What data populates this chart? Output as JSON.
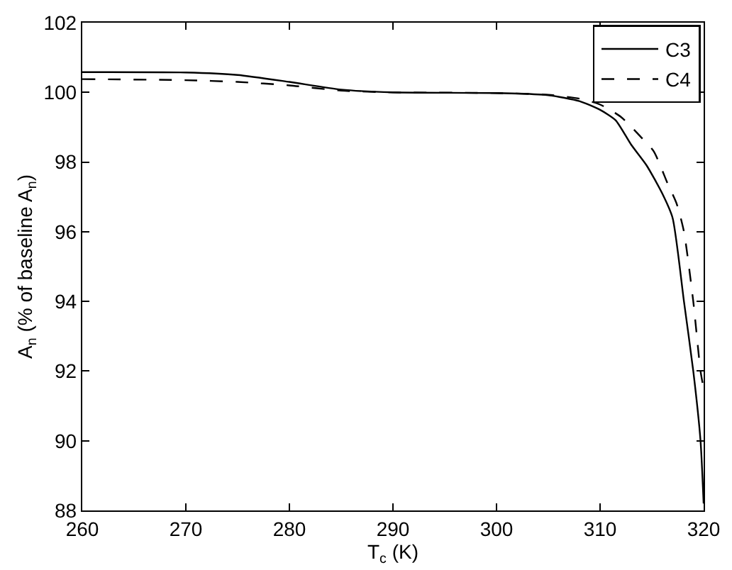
{
  "chart_data": {
    "type": "line",
    "xlabel": "T$_{c}$ (K)",
    "ylabel": "A$_{n}$ (% of baseline A$_{n}$)",
    "xlim": [
      260,
      320
    ],
    "xticks": [
      260,
      270,
      280,
      290,
      300,
      310,
      320
    ],
    "ylim": [
      88,
      102
    ],
    "yticks": [
      88,
      90,
      92,
      94,
      96,
      98,
      100,
      102
    ],
    "legend": "top right",
    "marker": "none",
    "series": [
      {
        "name": "C3",
        "color": "#000000",
        "line_style": "solid",
        "x": [
          260,
          270,
          275,
          280,
          285,
          290,
          300,
          305,
          308,
          310,
          311.5,
          313,
          314.5,
          316,
          317,
          318.1,
          319,
          319.7,
          320
        ],
        "values": [
          100.58,
          100.57,
          100.5,
          100.3,
          100.08,
          100.0,
          99.98,
          99.92,
          99.75,
          99.5,
          99.2,
          98.5,
          97.9,
          97.1,
          96.4,
          94,
          92,
          90,
          88.2
        ]
      },
      {
        "name": "C4",
        "color": "#000000",
        "line_style": "dashed",
        "x": [
          260,
          270,
          275,
          280,
          285,
          290,
          300,
          305,
          308,
          310,
          312,
          314,
          315.2,
          316.5,
          317.4,
          318.1,
          319,
          319.7,
          320
        ],
        "values": [
          100.38,
          100.35,
          100.3,
          100.2,
          100.05,
          100.0,
          99.98,
          99.93,
          99.82,
          99.65,
          99.3,
          98.7,
          98.3,
          97.4,
          96.8,
          96,
          94,
          92,
          91.5
        ]
      }
    ]
  }
}
